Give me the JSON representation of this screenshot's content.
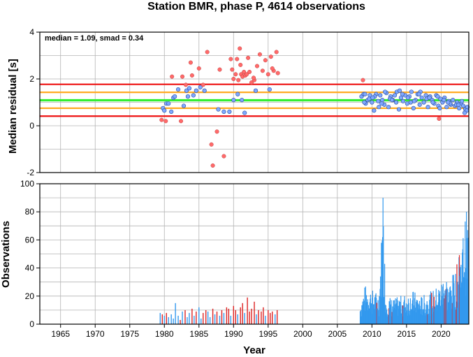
{
  "chart_data": [
    {
      "type": "scatter",
      "title": "Station BMR, phase P, 4614 observations",
      "xlabel": "",
      "ylabel": "Median residual [s]",
      "xlim": [
        1962,
        2024
      ],
      "ylim": [
        -2,
        4
      ],
      "yticks": [
        "-2",
        "0",
        "2",
        "4"
      ],
      "grid": true,
      "annotation": "median = 1.09, smad = 0.34",
      "reference_lines": {
        "median": 1.09,
        "one_smad": [
          0.75,
          1.43
        ],
        "three_smad": [
          0.41,
          1.77
        ],
        "colors": {
          "median": "#33ee33",
          "one_smad": "#ffaa22",
          "three_smad": "#ee1111"
        }
      },
      "outlier_color": "#ff6a6a",
      "inlier_color": "#7fa8ff",
      "outliers": {
        "x": [
          1979.6,
          1980.2,
          1981.1,
          1982.4,
          1982.6,
          1983.1,
          1984.0,
          1985.0,
          1985.6,
          1986.2,
          1986.8,
          1987.0,
          1987.6,
          1988.0,
          1988.6,
          1989.6,
          1990.0,
          1990.3,
          1990.5,
          1990.7,
          1990.9,
          1991.1,
          1991.3,
          1991.5,
          1991.7,
          1991.9,
          1992.1,
          1992.3,
          1992.6,
          1993.0,
          1993.4,
          1993.8,
          1994.2,
          1994.6,
          1995.0,
          1995.4,
          1995.8,
          1996.2,
          1996.4,
          2008.7,
          2019.7,
          1989.8,
          1991.0,
          1992.9,
          1995.6,
          1983.8
        ],
        "y": [
          0.25,
          0.2,
          2.1,
          0.2,
          2.1,
          1.75,
          2.15,
          2.45,
          1.75,
          3.15,
          -0.8,
          -1.7,
          -0.25,
          2.4,
          -1.3,
          2.85,
          2.0,
          2.2,
          2.85,
          1.95,
          3.3,
          2.2,
          2.1,
          2.3,
          2.15,
          2.2,
          2.9,
          2.3,
          1.85,
          1.95,
          2.55,
          3.05,
          2.35,
          2.8,
          2.2,
          2.95,
          2.35,
          3.15,
          2.25,
          1.95,
          0.3,
          2.4,
          2.6,
          2.05,
          2.45,
          2.7
        ]
      },
      "inliers": {
        "x": [
          1979.8,
          1980.0,
          1980.3,
          1980.6,
          1981.0,
          1981.3,
          1981.5,
          1982.0,
          1982.8,
          1983.2,
          1983.4,
          1983.6,
          1984.2,
          1984.6,
          1985.2,
          1985.8,
          1987.8,
          1988.6,
          1989.4,
          1990.0,
          1990.6,
          1991.2,
          1991.6,
          1993.2,
          1995.2,
          2008.5,
          2008.8,
          2009.1,
          2009.4,
          2009.7,
          2010.0,
          2010.3,
          2010.6,
          2010.9,
          2011.2,
          2011.5,
          2011.8,
          2012.1,
          2012.4,
          2012.7,
          2013.0,
          2013.3,
          2013.6,
          2013.9,
          2014.2,
          2014.5,
          2014.8,
          2015.1,
          2015.4,
          2015.7,
          2016.0,
          2016.3,
          2016.6,
          2016.9,
          2017.2,
          2017.5,
          2017.8,
          2018.1,
          2018.4,
          2018.7,
          2019.0,
          2019.3,
          2019.6,
          2019.9,
          2020.2,
          2020.5,
          2020.8,
          2021.1,
          2021.4,
          2021.7,
          2022.0,
          2022.3,
          2022.6,
          2022.9,
          2023.2,
          2023.5,
          2023.8,
          2008.9,
          2009.6,
          2010.4,
          2011.0,
          2011.9,
          2012.6,
          2013.5,
          2014.4,
          2015.2,
          2016.1,
          2017.0,
          2017.9,
          2018.8,
          2019.5,
          2020.4,
          2021.3,
          2022.2,
          2023.0,
          2023.7,
          2009.0,
          2010.1,
          2011.4,
          2012.9,
          2014.0,
          2015.6,
          2016.8,
          2018.3,
          2019.8,
          2021.0,
          2022.5,
          2023.4
        ],
        "y": [
          0.75,
          0.65,
          0.95,
          0.95,
          0.6,
          1.2,
          1.25,
          1.55,
          0.85,
          1.5,
          1.25,
          1.6,
          1.3,
          1.5,
          1.65,
          1.5,
          0.7,
          0.6,
          0.6,
          1.1,
          1.35,
          1.1,
          0.55,
          1.5,
          1.55,
          1.25,
          1.35,
          0.95,
          1.1,
          1.3,
          1.0,
          0.65,
          1.35,
          1.05,
          1.3,
          1.1,
          0.9,
          1.4,
          0.8,
          1.25,
          1.1,
          1.3,
          1.45,
          0.7,
          1.2,
          1.05,
          1.3,
          0.95,
          1.25,
          1.45,
          0.75,
          1.1,
          1.35,
          0.9,
          1.2,
          1.0,
          1.3,
          0.8,
          1.25,
          1.1,
          0.95,
          1.3,
          0.85,
          1.15,
          1.0,
          1.2,
          0.8,
          1.05,
          0.9,
          1.1,
          0.85,
          1.0,
          0.75,
          0.95,
          0.85,
          0.7,
          0.8,
          1.0,
          1.15,
          1.25,
          0.8,
          1.45,
          1.15,
          1.0,
          1.35,
          1.2,
          1.05,
          1.45,
          1.15,
          1.0,
          1.25,
          1.1,
          0.95,
          0.9,
          1.05,
          0.65,
          1.35,
          1.2,
          0.95,
          1.1,
          1.5,
          1.0,
          1.35,
          1.2,
          0.75,
          1.0,
          0.9,
          0.55
        ]
      }
    },
    {
      "type": "bar",
      "title": "",
      "xlabel": "Year",
      "ylabel": "Observations",
      "xlim": [
        1962,
        2024
      ],
      "ylim": [
        0,
        100
      ],
      "yticks": [
        "0",
        "20",
        "40",
        "60",
        "80",
        "100"
      ],
      "xticks": [
        "1965",
        "1970",
        "1975",
        "1980",
        "1985",
        "1990",
        "1995",
        "2000",
        "2005",
        "2010",
        "2015",
        "2020"
      ],
      "grid": true,
      "colors": {
        "early": "#3399ee",
        "outlier": "#dd2222",
        "recent": "#3399ee"
      },
      "early_bars": {
        "x": [
          1979.4,
          1979.7,
          1980.0,
          1980.3,
          1980.6,
          1981.0,
          1981.3,
          1981.6,
          1982.0,
          1982.3,
          1982.6,
          1983.0,
          1983.3,
          1983.6,
          1984.0,
          1984.3,
          1984.6,
          1985.0,
          1985.3,
          1985.6,
          1986.0,
          1986.3,
          1986.6,
          1987.0,
          1987.3,
          1987.6,
          1988.0,
          1988.3,
          1988.6,
          1989.0,
          1989.3,
          1989.6,
          1990.0,
          1990.3,
          1990.6,
          1991.0,
          1991.3,
          1991.6,
          1992.0,
          1992.3,
          1992.6,
          1993.0,
          1993.3,
          1993.6,
          1994.0,
          1994.3,
          1994.6,
          1995.0,
          1995.3,
          1995.6,
          1996.0,
          1996.3
        ],
        "values": [
          8,
          7,
          6,
          8,
          5,
          7,
          4,
          15,
          6,
          3,
          9,
          10,
          5,
          8,
          11,
          6,
          9,
          12,
          4,
          8,
          10,
          9,
          5,
          11,
          7,
          9,
          6,
          10,
          8,
          12,
          11,
          6,
          13,
          10,
          7,
          12,
          15,
          8,
          19,
          9,
          11,
          16,
          7,
          10,
          9,
          12,
          6,
          10,
          8,
          9,
          7,
          10
        ],
        "outlier": [
          false,
          true,
          false,
          true,
          false,
          false,
          false,
          false,
          false,
          true,
          false,
          true,
          false,
          false,
          true,
          false,
          true,
          false,
          false,
          true,
          true,
          false,
          false,
          true,
          false,
          true,
          false,
          true,
          false,
          true,
          true,
          false,
          true,
          true,
          false,
          true,
          true,
          false,
          true,
          true,
          true,
          true,
          false,
          true,
          true,
          true,
          false,
          true,
          true,
          true,
          false,
          true
        ]
      },
      "recent_profile": {
        "x": [
          2008.3,
          2009.0,
          2010.0,
          2011.0,
          2011.6,
          2012.0,
          2013.0,
          2014.0,
          2015.0,
          2016.0,
          2017.0,
          2018.0,
          2019.0,
          2020.0,
          2020.6,
          2021.0,
          2021.6,
          2022.0,
          2022.6,
          2023.0,
          2023.6,
          2024.0
        ],
        "values": [
          15,
          28,
          25,
          22,
          90,
          22,
          18,
          20,
          22,
          24,
          20,
          22,
          25,
          30,
          42,
          28,
          35,
          38,
          48,
          60,
          82,
          75
        ]
      }
    }
  ]
}
